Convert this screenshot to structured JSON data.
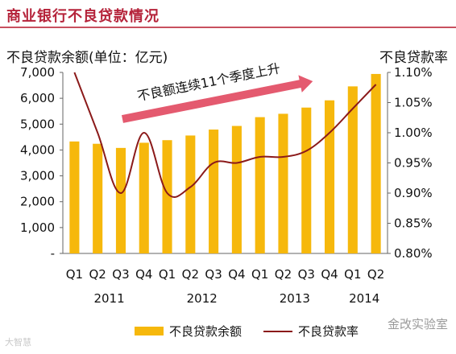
{
  "header": {
    "title": "商业银行不良贷款情况",
    "title_color": "#b5233a"
  },
  "chart_data": {
    "type": "bar",
    "title": "商业银行不良贷款情况",
    "y_left_label": "不良贷款余额(单位：亿元)",
    "y_right_label": "不良贷款率",
    "y_left_ticks": [
      "7,000",
      "6,000",
      "5,000",
      "4,000",
      "3,000",
      "2,000",
      "1,000",
      "-"
    ],
    "y_right_ticks": [
      "1.10%",
      "1.05%",
      "1.00%",
      "0.95%",
      "0.90%",
      "0.85%",
      "0.80%"
    ],
    "ylim_left": [
      0,
      7000
    ],
    "ylim_right": [
      0.8,
      1.1
    ],
    "categories": [
      "Q1",
      "Q2",
      "Q3",
      "Q4",
      "Q1",
      "Q2",
      "Q3",
      "Q4",
      "Q1",
      "Q2",
      "Q3",
      "Q4",
      "Q1",
      "Q2"
    ],
    "years": [
      {
        "label": "2011",
        "from": 0,
        "to": 3
      },
      {
        "label": "2012",
        "from": 4,
        "to": 7
      },
      {
        "label": "2013",
        "from": 8,
        "to": 11
      },
      {
        "label": "2014",
        "from": 12,
        "to": 13
      }
    ],
    "series": [
      {
        "name": "不良贷款余额",
        "type": "bar",
        "axis": "left",
        "color": "#f6b80c",
        "values": [
          4330,
          4240,
          4080,
          4280,
          4380,
          4560,
          4790,
          4930,
          5270,
          5400,
          5640,
          5920,
          6460,
          6940
        ]
      },
      {
        "name": "不良贷款率",
        "type": "line",
        "axis": "right",
        "color": "#8b1a1a",
        "values": [
          1.1,
          1.0,
          0.9,
          1.0,
          0.9,
          0.91,
          0.95,
          0.95,
          0.96,
          0.96,
          0.97,
          1.0,
          1.04,
          1.08
        ]
      }
    ],
    "annotation": "不良额连续11个季度上升",
    "annotation_arrow_color": "#e45a6f",
    "legend_position": "bottom",
    "grid": false
  },
  "watermarks": {
    "left": "大智慧",
    "right": "金改实验室"
  }
}
